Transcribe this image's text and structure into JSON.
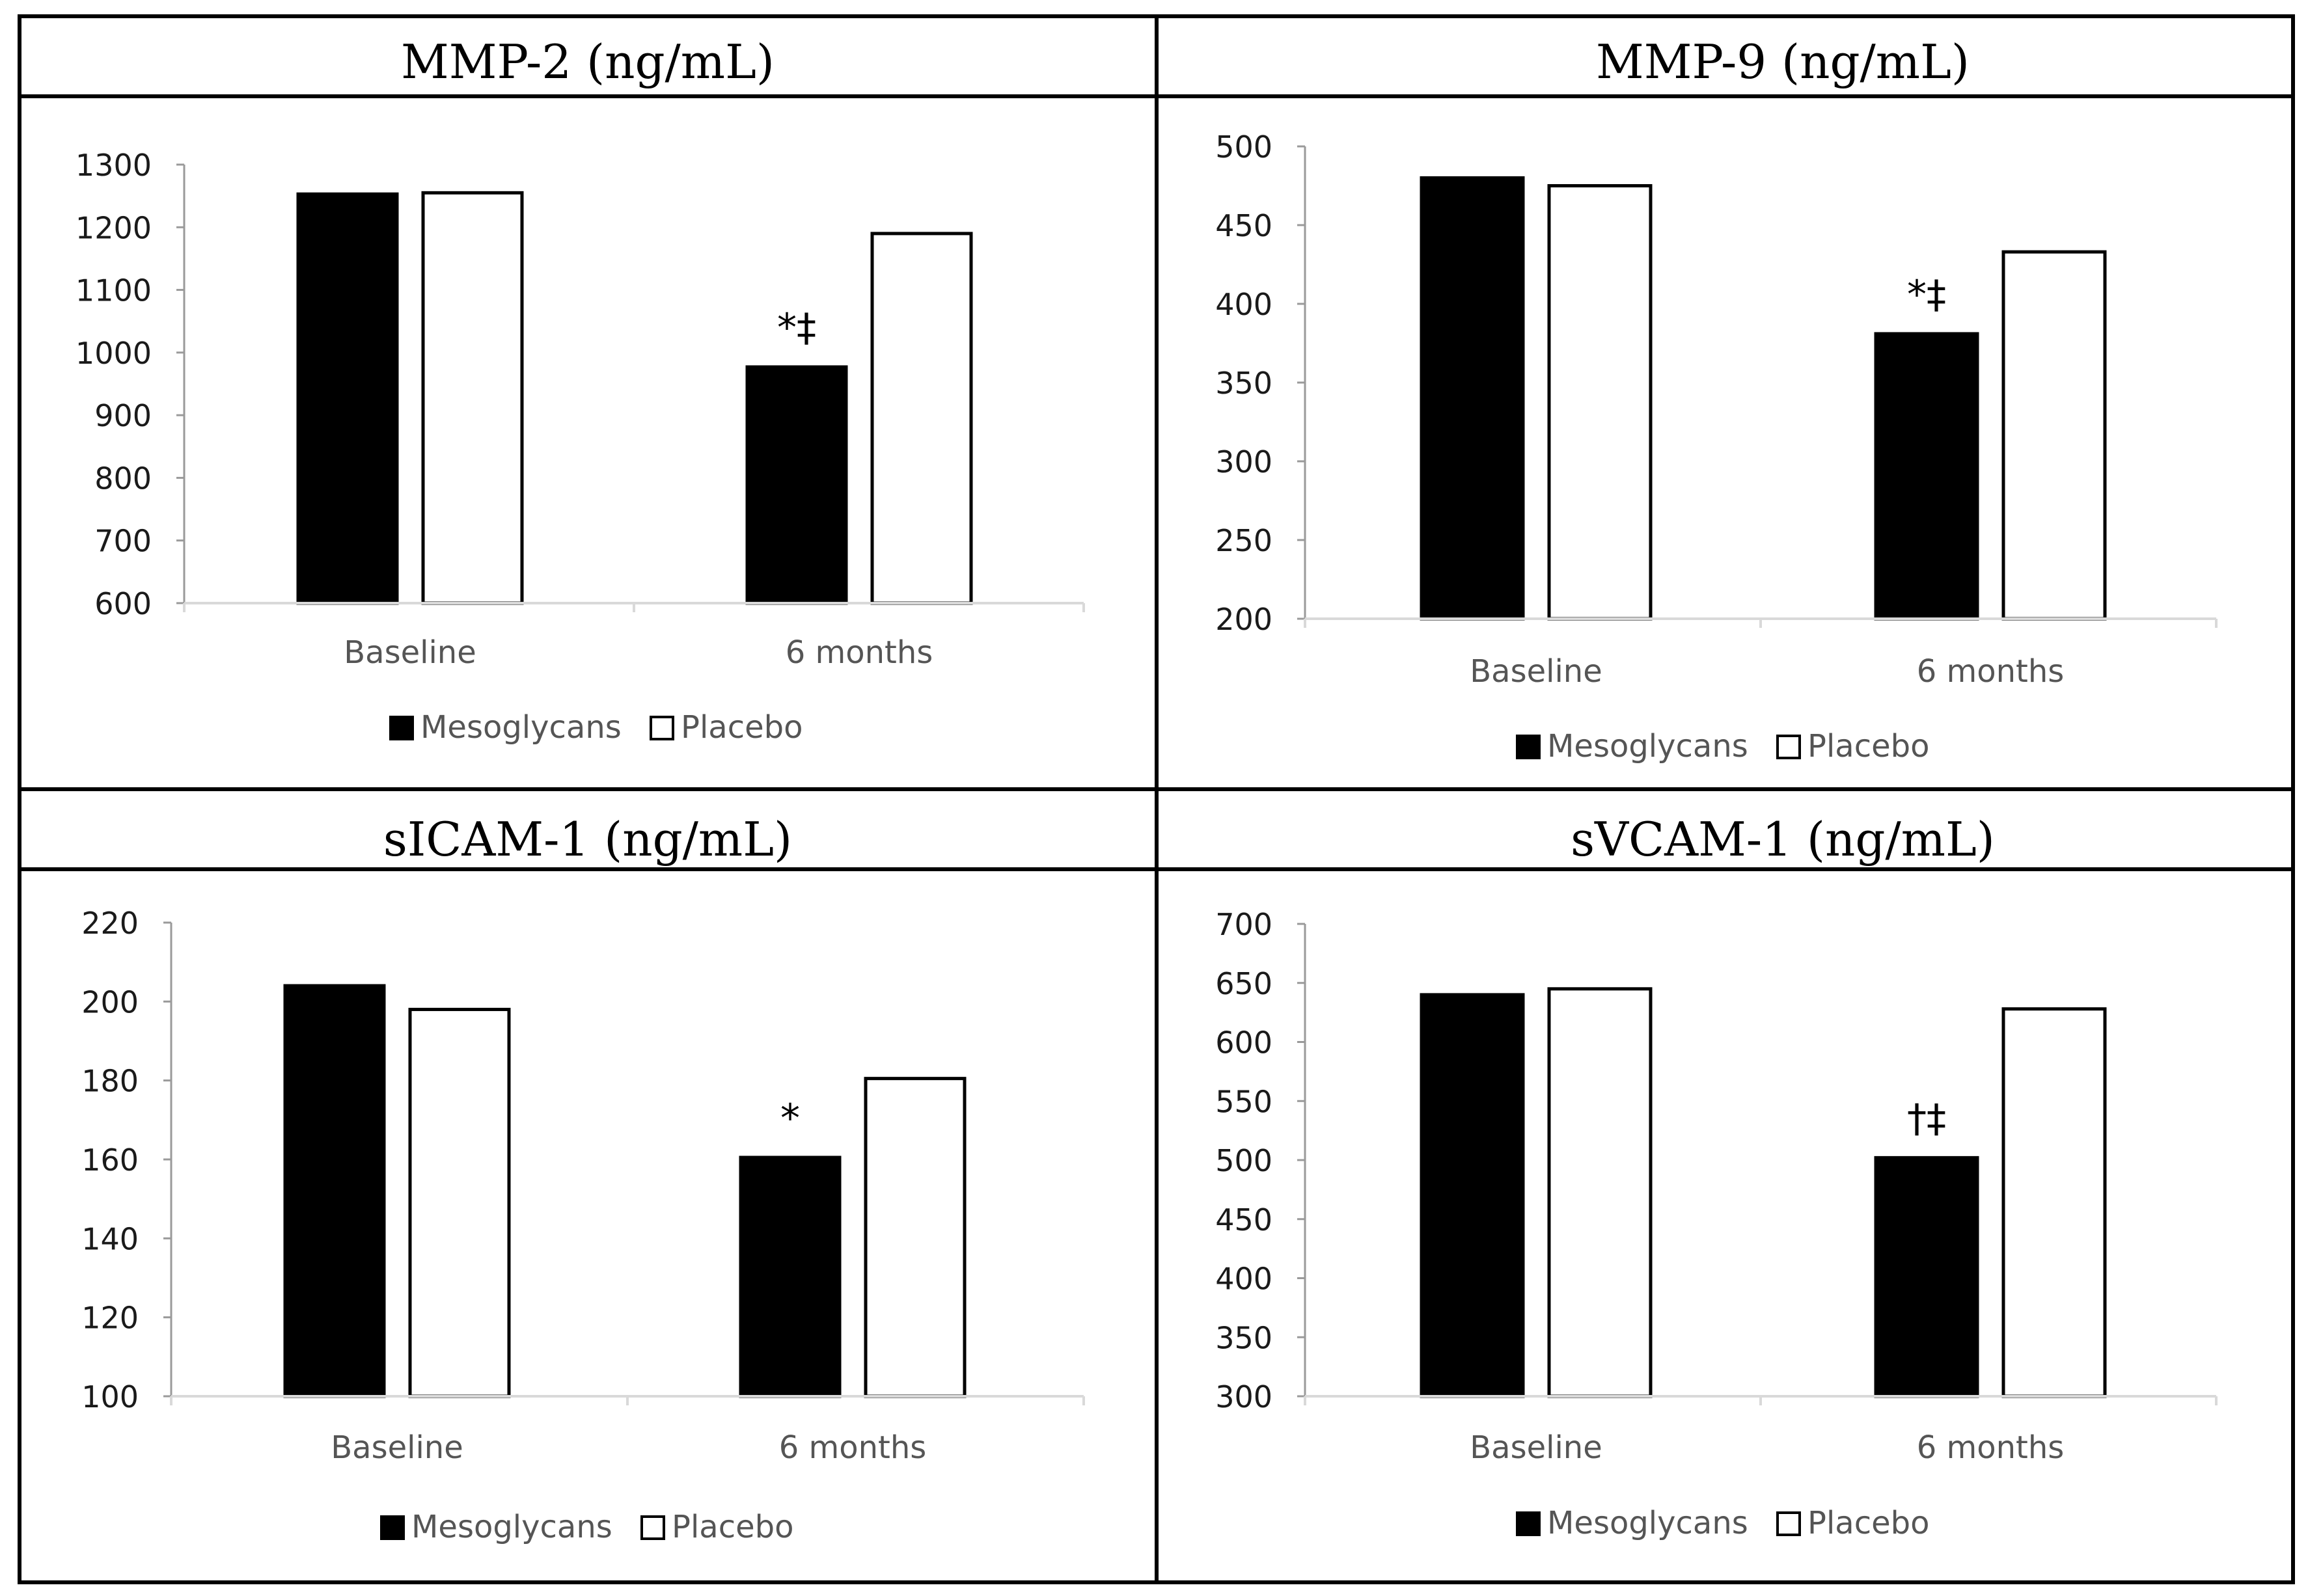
{
  "colors": {
    "mesoglycans": "#000000",
    "placebo": "#ffffff",
    "bar_stroke": "#000000",
    "axis": "#d9d9d9",
    "tick_text": "#1a1a1a",
    "category_text": "#555555",
    "border": "#000000"
  },
  "chart_data": [
    {
      "type": "bar",
      "title": "MMP-2 (ng/mL)",
      "categories": [
        "Baseline",
        "6 months"
      ],
      "series": [
        {
          "name": "Mesoglycans",
          "values": [
            1253,
            977
          ]
        },
        {
          "name": "Placebo",
          "values": [
            1255,
            1190
          ]
        }
      ],
      "yticks": [
        "1300",
        "1200",
        "1100",
        "1000",
        "900",
        "800",
        "700",
        "600"
      ],
      "ylim": [
        600,
        1300
      ],
      "annotations": [
        {
          "category": "6 months",
          "series": "Mesoglycans",
          "text": "*‡"
        }
      ],
      "legend": [
        "Mesoglycans",
        "Placebo"
      ],
      "xlabel": "",
      "ylabel": ""
    },
    {
      "type": "bar",
      "title": "MMP-9 (ng/mL)",
      "categories": [
        "Baseline",
        "6 months"
      ],
      "series": [
        {
          "name": "Mesoglycans",
          "values": [
            480,
            381
          ]
        },
        {
          "name": "Placebo",
          "values": [
            475,
            433
          ]
        }
      ],
      "yticks": [
        "500",
        "450",
        "400",
        "350",
        "300",
        "250",
        "200"
      ],
      "ylim": [
        200,
        500
      ],
      "annotations": [
        {
          "category": "6 months",
          "series": "Mesoglycans",
          "text": "*‡"
        }
      ],
      "legend": [
        "Mesoglycans",
        "Placebo"
      ],
      "xlabel": "",
      "ylabel": ""
    },
    {
      "type": "bar",
      "title": "sICAM-1 (ng/mL)",
      "categories": [
        "Baseline",
        "6 months"
      ],
      "series": [
        {
          "name": "Mesoglycans",
          "values": [
            204,
            160.5
          ]
        },
        {
          "name": "Placebo",
          "values": [
            198,
            180.5
          ]
        }
      ],
      "yticks": [
        "220",
        "200",
        "180",
        "160",
        "140",
        "120",
        "100"
      ],
      "ylim": [
        100,
        220
      ],
      "annotations": [
        {
          "category": "6 months",
          "series": "Mesoglycans",
          "text": "*"
        }
      ],
      "legend": [
        "Mesoglycans",
        "Placebo"
      ],
      "xlabel": "",
      "ylabel": ""
    },
    {
      "type": "bar",
      "title": "sVCAM-1 (ng/mL)",
      "categories": [
        "Baseline",
        "6 months"
      ],
      "series": [
        {
          "name": "Mesoglycans",
          "values": [
            640,
            502
          ]
        },
        {
          "name": "Placebo",
          "values": [
            645,
            628
          ]
        }
      ],
      "yticks": [
        "700",
        "650",
        "600",
        "550",
        "500",
        "450",
        "400",
        "350",
        "300"
      ],
      "ylim": [
        300,
        700
      ],
      "annotations": [
        {
          "category": "6 months",
          "series": "Mesoglycans",
          "text": "†‡"
        }
      ],
      "legend": [
        "Mesoglycans",
        "Placebo"
      ],
      "xlabel": "",
      "ylabel": ""
    }
  ]
}
